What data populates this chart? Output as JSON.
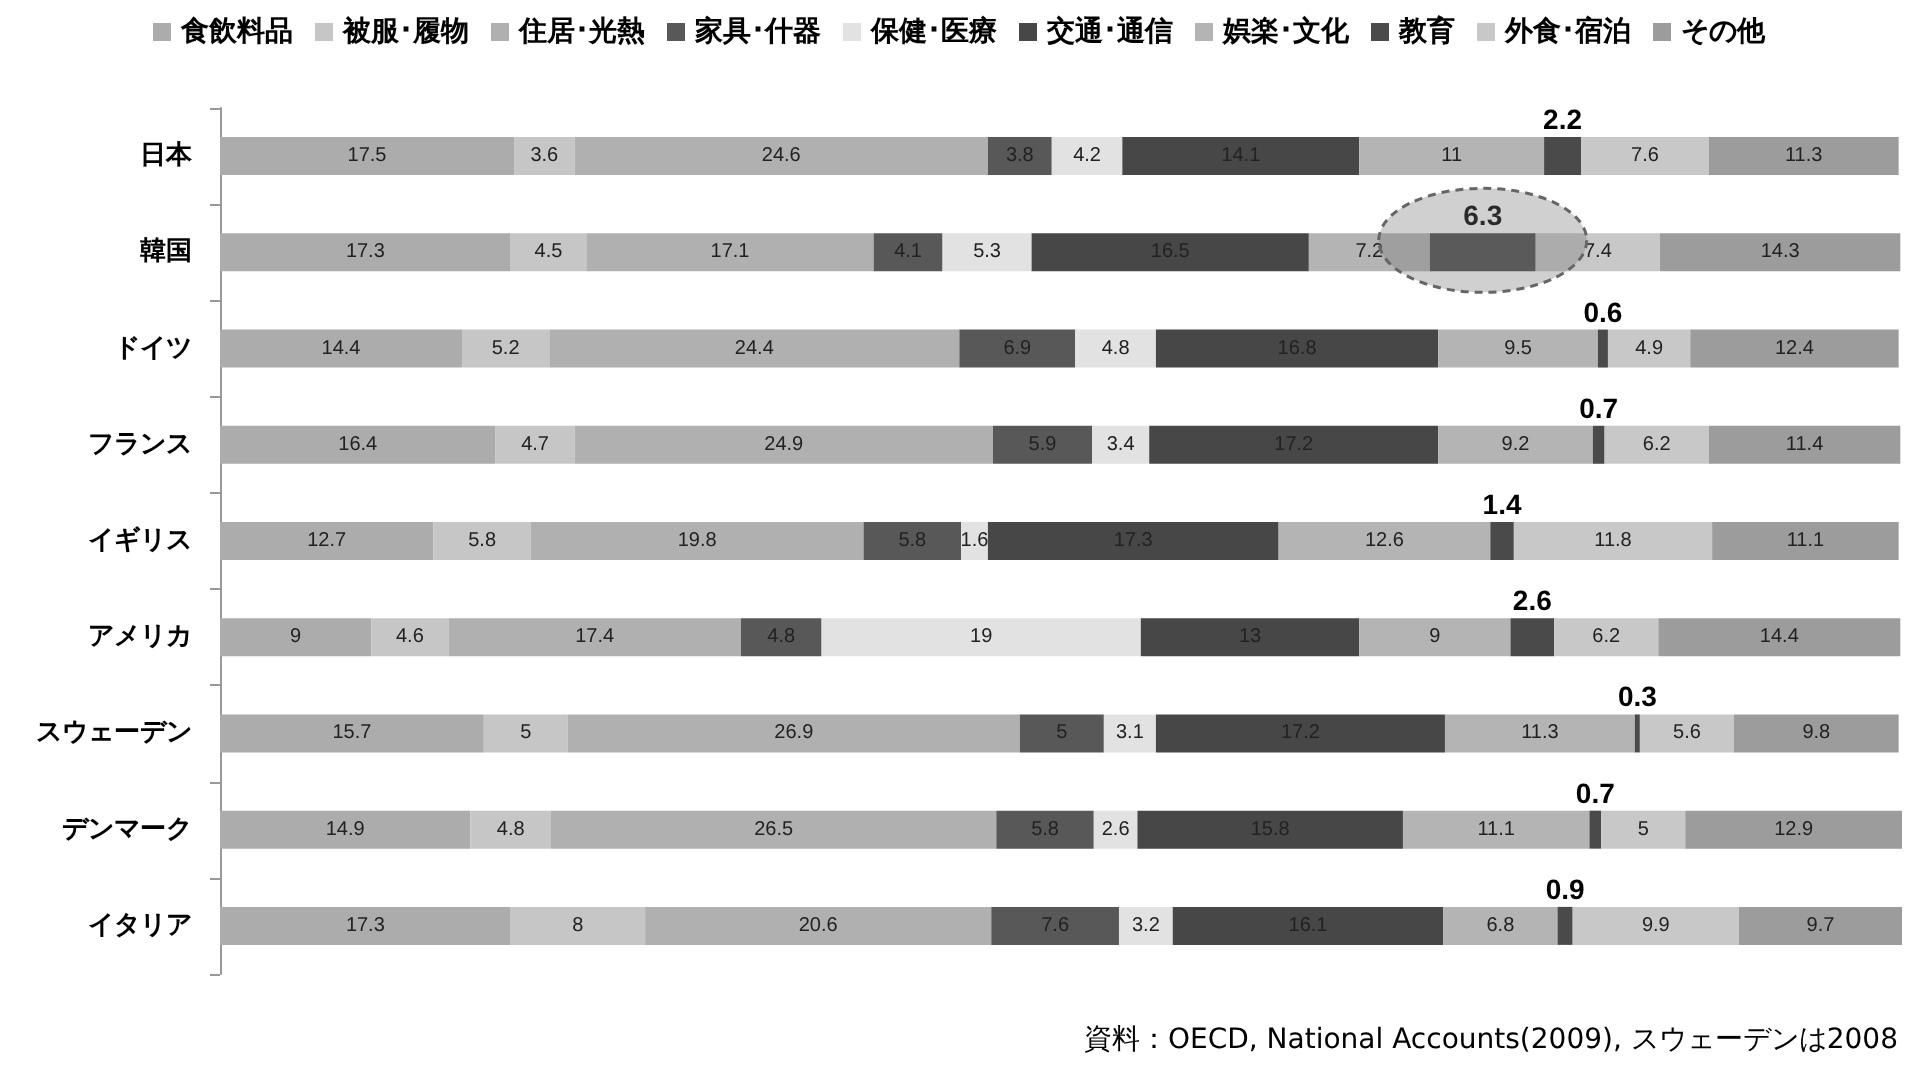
{
  "chart_data": {
    "type": "bar",
    "stacked": true,
    "orientation": "horizontal",
    "data_labels": true,
    "legend": "top",
    "categories": [
      "日本",
      "韓国",
      "ドイツ",
      "フランス",
      "イギリス",
      "アメリカ",
      "スウェーデン",
      "デンマーク",
      "イタリア"
    ],
    "series": [
      {
        "name": "食飲料品",
        "color": "#acacac",
        "values": [
          17.5,
          17.3,
          14.4,
          16.4,
          12.7,
          9,
          15.7,
          14.9,
          17.3
        ]
      },
      {
        "name": "被服･履物",
        "color": "#c6c6c6",
        "values": [
          3.6,
          4.5,
          5.2,
          4.7,
          5.8,
          4.6,
          5,
          4.8,
          8
        ]
      },
      {
        "name": "住居･光熱",
        "color": "#b0b0b0",
        "values": [
          24.6,
          17.1,
          24.4,
          24.9,
          19.8,
          17.4,
          26.9,
          26.5,
          20.6
        ]
      },
      {
        "name": "家具･什器",
        "color": "#585858",
        "values": [
          3.8,
          4.1,
          6.9,
          5.9,
          5.8,
          4.8,
          5,
          5.8,
          7.6
        ]
      },
      {
        "name": "保健･医療",
        "color": "#e2e2e2",
        "values": [
          4.2,
          5.3,
          4.8,
          3.4,
          1.6,
          19,
          3.1,
          2.6,
          3.2
        ]
      },
      {
        "name": "交通･通信",
        "color": "#474747",
        "values": [
          14.1,
          16.5,
          16.8,
          17.2,
          17.3,
          13,
          17.2,
          15.8,
          16.1
        ]
      },
      {
        "name": "娯楽･文化",
        "color": "#b4b4b4",
        "values": [
          11,
          7.2,
          9.5,
          9.2,
          12.6,
          9,
          11.3,
          11.1,
          6.8
        ]
      },
      {
        "name": "教育",
        "color": "#4a4a4a",
        "values": [
          2.2,
          6.3,
          0.6,
          0.7,
          1.4,
          2.6,
          0.3,
          0.7,
          0.9
        ]
      },
      {
        "name": "外食･宿泊",
        "color": "#c8c8c8",
        "values": [
          7.6,
          7.4,
          4.9,
          6.2,
          11.8,
          6.2,
          5.6,
          5,
          9.9
        ]
      },
      {
        "name": "その他",
        "color": "#9c9c9c",
        "values": [
          11.3,
          14.3,
          12.4,
          11.4,
          11.1,
          14.4,
          9.8,
          12.9,
          9.7
        ]
      }
    ],
    "annotations": [
      "資料：OECD, National Accounts(2009), スウェーデンは2008"
    ]
  }
}
